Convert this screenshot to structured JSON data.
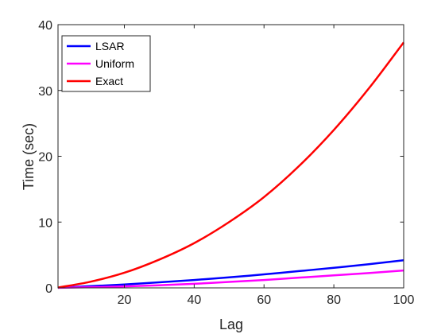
{
  "chart_data": {
    "type": "line",
    "title": "",
    "xlabel": "Lag",
    "ylabel": "Time (sec)",
    "xlim": [
      1,
      100
    ],
    "ylim": [
      0,
      40
    ],
    "xticks": [
      20,
      40,
      60,
      80,
      100
    ],
    "yticks": [
      0,
      10,
      20,
      30,
      40
    ],
    "grid": false,
    "legend_position": "top-left",
    "x": [
      1,
      10,
      20,
      30,
      40,
      50,
      60,
      70,
      80,
      90,
      100
    ],
    "series": [
      {
        "name": "LSAR",
        "color": "#0000ff",
        "values": [
          0.02,
          0.25,
          0.52,
          0.85,
          1.2,
          1.6,
          2.05,
          2.55,
          3.05,
          3.6,
          4.2
        ]
      },
      {
        "name": "Uniform",
        "color": "#ff00ff",
        "values": [
          0.01,
          0.1,
          0.22,
          0.4,
          0.62,
          0.9,
          1.2,
          1.55,
          1.9,
          2.25,
          2.65
        ]
      },
      {
        "name": "Exact",
        "color": "#ff0000",
        "values": [
          0.05,
          0.9,
          2.3,
          4.3,
          6.8,
          10.0,
          13.8,
          18.5,
          24.0,
          30.3,
          37.3
        ]
      }
    ]
  }
}
